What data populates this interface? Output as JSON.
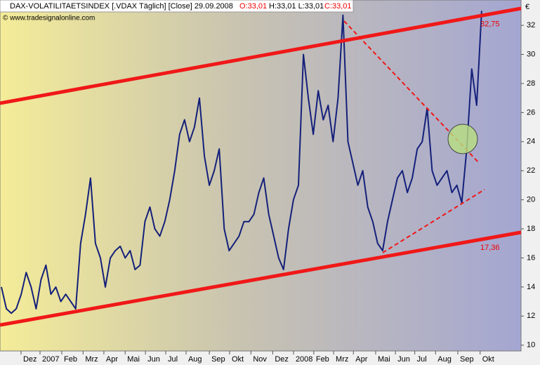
{
  "chart_data": {
    "type": "line",
    "title": "DAX-VOLATILITAETSINDEX [.VDAX  Täglich] [Close] 29.09.2008",
    "ohlc": [
      "O:33,01",
      "H:33,01 L:33,01",
      "C:33,01"
    ],
    "copyright": "© www.tradesignalonline.com",
    "y_unit": "€",
    "color": "#14207a",
    "values": [
      14,
      12.5,
      12.2,
      12.5,
      13.5,
      15,
      14,
      12.5,
      14.5,
      15.5,
      13.5,
      14,
      13,
      13.5,
      13,
      12.5,
      17,
      19,
      21.5,
      17,
      16,
      14,
      16,
      16.5,
      16.8,
      16,
      16.5,
      15.2,
      15.5,
      18.5,
      19.5,
      18,
      17.5,
      18.5,
      20,
      22,
      24.5,
      25.5,
      24,
      25,
      27,
      23,
      21,
      22,
      23.5,
      18,
      16.5,
      17,
      17.5,
      18.5,
      18.5,
      19,
      20.5,
      21.5,
      19,
      17.5,
      16,
      15.2,
      18,
      20,
      21,
      30,
      27,
      24.5,
      27.5,
      25.5,
      26.5,
      24,
      27,
      32.7,
      24,
      22.5,
      21,
      22,
      19.5,
      18.5,
      17,
      16.5,
      18.5,
      20,
      21.5,
      22,
      20.5,
      21.5,
      23.5,
      24,
      26.3,
      22,
      21,
      21.5,
      22,
      20.5,
      21,
      19.8,
      23.5,
      29,
      26.5,
      33
    ],
    "xticks": [
      {
        "value": 3.97,
        "label": "Dez"
      },
      {
        "value": 7.8,
        "label": "2007"
      },
      {
        "value": 12.2,
        "label": "Feb"
      },
      {
        "value": 16.5,
        "label": "Mrz"
      },
      {
        "value": 20.7,
        "label": "Apr"
      },
      {
        "value": 25,
        "label": "Mai"
      },
      {
        "value": 29.1,
        "label": "Jun"
      },
      {
        "value": 33.2,
        "label": "Jul"
      },
      {
        "value": 37.3,
        "label": "Aug"
      },
      {
        "value": 42,
        "label": "Sep"
      },
      {
        "value": 46.1,
        "label": "Okt"
      },
      {
        "value": 50.4,
        "label": "Nov"
      },
      {
        "value": 54.8,
        "label": "Dez"
      },
      {
        "value": 59,
        "label": "2008"
      },
      {
        "value": 63.1,
        "label": "Feb"
      },
      {
        "value": 67.1,
        "label": "Mrz"
      },
      {
        "value": 71.1,
        "label": "Apr"
      },
      {
        "value": 75.6,
        "label": "Mai"
      },
      {
        "value": 79.6,
        "label": "Jun"
      },
      {
        "value": 83.5,
        "label": "Jul"
      },
      {
        "value": 87.7,
        "label": "Aug"
      },
      {
        "value": 92.2,
        "label": "Sep"
      },
      {
        "value": 96.7,
        "label": "Okt"
      }
    ],
    "ylim": [
      9.6,
      33.6
    ],
    "yticks": [
      10,
      12,
      14,
      16,
      18,
      20,
      22,
      24,
      26,
      28,
      30,
      32
    ],
    "annotations": [
      {
        "text": "32,75",
        "value": 32.75
      },
      {
        "text": "17,36",
        "value": 17.36
      }
    ]
  }
}
